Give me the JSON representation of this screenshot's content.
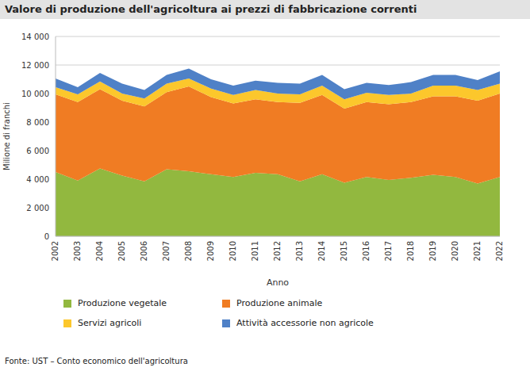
{
  "chart_data": {
    "type": "area",
    "title": "Valore di produzione dell'agricoltura ai prezzi di fabbricazione correnti",
    "x_label": "Anno",
    "y_label": "Milione di franchi",
    "source": "Fonte: UST – Conto economico dell'agricoltura",
    "stacked": true,
    "grid": true,
    "categories": [
      "2002",
      "2003",
      "2004",
      "2005",
      "2006",
      "2007",
      "2008",
      "2009",
      "2010",
      "2011",
      "2012",
      "2013",
      "2014",
      "2015",
      "2016",
      "2017",
      "2018",
      "2019",
      "2020",
      "2021",
      "2022"
    ],
    "series": [
      {
        "name": "Produzione vegetale",
        "color": "#92b83f",
        "values": [
          4500,
          3900,
          4750,
          4250,
          3850,
          4700,
          4550,
          4350,
          4150,
          4450,
          4350,
          3850,
          4350,
          3750,
          4150,
          3950,
          4100,
          4300,
          4150,
          3700,
          4150
        ]
      },
      {
        "name": "Produzione animale",
        "color": "#f07c23",
        "values": [
          5450,
          5500,
          5550,
          5250,
          5250,
          5400,
          5950,
          5400,
          5150,
          5150,
          5050,
          5500,
          5550,
          5200,
          5250,
          5300,
          5300,
          5500,
          5650,
          5800,
          5850
        ]
      },
      {
        "name": "Servizi agricoli",
        "color": "#fcc72c",
        "values": [
          500,
          550,
          550,
          500,
          550,
          600,
          550,
          600,
          600,
          650,
          600,
          600,
          650,
          650,
          650,
          650,
          600,
          750,
          750,
          750,
          700
        ]
      },
      {
        "name": "Attività accessorie non agricole",
        "color": "#4f81c7",
        "values": [
          600,
          500,
          600,
          700,
          600,
          600,
          700,
          650,
          650,
          650,
          750,
          750,
          750,
          700,
          700,
          700,
          800,
          750,
          750,
          700,
          850
        ]
      }
    ],
    "ylim": [
      0,
      14000
    ],
    "yticks": [
      0,
      {
        "value": 2000,
        "label": "2 000"
      },
      {
        "value": 4000,
        "label": "4 000"
      },
      {
        "value": 6000,
        "label": "6 000"
      },
      {
        "value": 8000,
        "label": "8 000"
      },
      {
        "value": 10000,
        "label": "10 000"
      },
      {
        "value": 12000,
        "label": "12 000"
      },
      {
        "value": 14000,
        "label": "14 000"
      }
    ]
  }
}
